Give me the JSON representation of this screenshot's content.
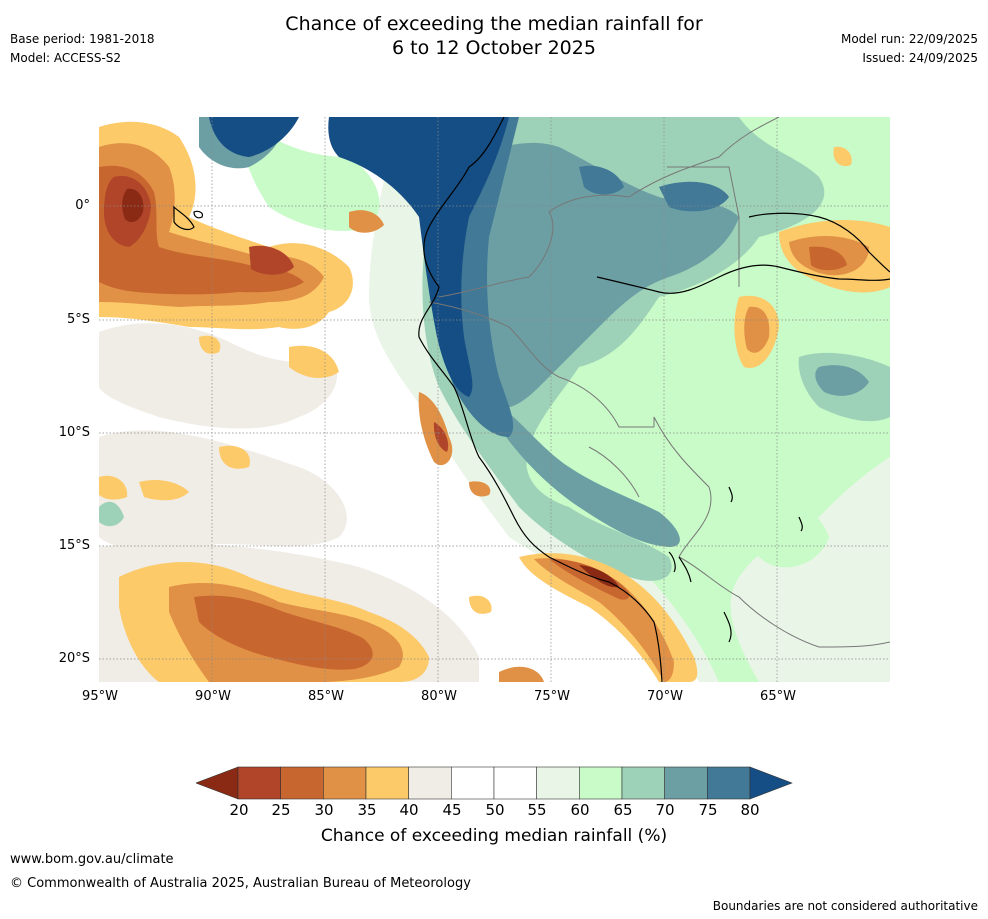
{
  "title_line1": "Chance of exceeding the median rainfall for",
  "title_line2": "6 to 12 October 2025",
  "meta_left": {
    "base_period": "Base period: 1981-2018",
    "model": "Model: ACCESS-S2"
  },
  "meta_right": {
    "model_run": "Model run: 22/09/2025",
    "issued": "Issued: 24/09/2025"
  },
  "lat_labels": [
    "0°",
    "5°S",
    "10°S",
    "15°S",
    "20°S"
  ],
  "lon_labels": [
    "95°W",
    "90°W",
    "85°W",
    "80°W",
    "75°W",
    "70°W",
    "65°W"
  ],
  "colorbar": {
    "ticks": [
      "20",
      "25",
      "30",
      "35",
      "40",
      "45",
      "50",
      "55",
      "60",
      "65",
      "70",
      "75",
      "80"
    ],
    "low_color": "#8a2a14",
    "high_color": "#154e84",
    "colors": [
      "#b0452a",
      "#c8662f",
      "#e09146",
      "#fdca6a",
      "#f0ece6",
      "#ffffff",
      "#ffffff",
      "#e9f5e7",
      "#c8fbc8",
      "#9ed2b8",
      "#6b9fa4",
      "#417997"
    ],
    "label": "Chance of exceeding median rainfall (%)"
  },
  "footer": {
    "website": "www.bom.gov.au/climate",
    "copyright": "© Commonwealth of Australia 2025, Australian Bureau of Meteorology",
    "disclaimer": "Boundaries are not considered authoritative"
  }
}
